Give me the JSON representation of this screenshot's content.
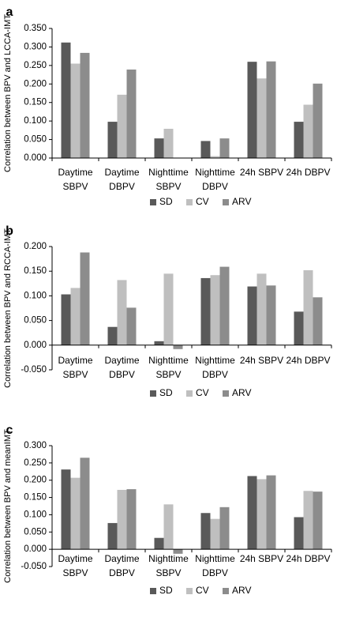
{
  "chart_data": [
    {
      "panel_label": "a",
      "type": "bar",
      "categories": [
        [
          "Daytime",
          "SBPV"
        ],
        [
          "Daytime",
          "DBPV"
        ],
        [
          "Nighttime",
          "SBPV"
        ],
        [
          "Nighttime",
          "DBPV"
        ],
        [
          "24h SBPV"
        ],
        [
          "24h DBPV"
        ]
      ],
      "series": [
        {
          "name": "SD",
          "values": [
            0.312,
            0.098,
            0.053,
            0.046,
            0.26,
            0.098
          ]
        },
        {
          "name": "CV",
          "values": [
            0.255,
            0.171,
            0.079,
            0.005,
            0.215,
            0.144
          ]
        },
        {
          "name": "ARV",
          "values": [
            0.284,
            0.239,
            0.0,
            0.053,
            0.261,
            0.201
          ]
        }
      ],
      "ylabel": "Correlation between BPV and LCCA-IMT",
      "ylim": [
        0,
        0.35
      ],
      "ticks": [
        "0.000",
        "0.050",
        "0.100",
        "0.150",
        "0.200",
        "0.250",
        "0.300",
        "0.350"
      ],
      "legend_position": "bottom",
      "grid": false
    },
    {
      "panel_label": "b",
      "type": "bar",
      "categories": [
        [
          "Daytime",
          "SBPV"
        ],
        [
          "Daytime",
          "DBPV"
        ],
        [
          "Nighttime",
          "SBPV"
        ],
        [
          "Nighttime",
          "DBPV"
        ],
        [
          "24h SBPV"
        ],
        [
          "24h DBPV"
        ]
      ],
      "series": [
        {
          "name": "SD",
          "values": [
            0.103,
            0.037,
            0.008,
            0.136,
            0.119,
            0.068
          ]
        },
        {
          "name": "CV",
          "values": [
            0.116,
            0.132,
            0.145,
            0.142,
            0.145,
            0.152
          ]
        },
        {
          "name": "ARV",
          "values": [
            0.188,
            0.076,
            -0.008,
            0.159,
            0.121,
            0.097
          ]
        }
      ],
      "ylabel": "Correlation between BPV and RCCA-IMT",
      "ylim": [
        -0.05,
        0.2
      ],
      "ticks": [
        "-0.050",
        "0.000",
        "0.050",
        "0.100",
        "0.150",
        "0.200"
      ],
      "legend_position": "bottom",
      "grid": false
    },
    {
      "panel_label": "c",
      "type": "bar",
      "categories": [
        [
          "Daytime",
          "SBPV"
        ],
        [
          "Daytime",
          "DBPV"
        ],
        [
          "Nighttime",
          "SBPV"
        ],
        [
          "Nighttime",
          "DBPV"
        ],
        [
          "24h SBPV"
        ],
        [
          "24h DBPV"
        ]
      ],
      "series": [
        {
          "name": "SD",
          "values": [
            0.231,
            0.076,
            0.033,
            0.105,
            0.212,
            0.093
          ]
        },
        {
          "name": "CV",
          "values": [
            0.207,
            0.172,
            0.13,
            0.088,
            0.203,
            0.169
          ]
        },
        {
          "name": "ARV",
          "values": [
            0.265,
            0.174,
            -0.013,
            0.122,
            0.214,
            0.167
          ]
        }
      ],
      "ylabel": "Correlation between BPV and meanIMT",
      "ylim": [
        -0.05,
        0.3
      ],
      "ticks": [
        "-0.050",
        "0.000",
        "0.050",
        "0.100",
        "0.150",
        "0.200",
        "0.250",
        "0.300"
      ],
      "legend_position": "bottom",
      "grid": false
    }
  ],
  "colors": {
    "SD": "#595959",
    "CV": "#bfbfbf",
    "ARV": "#8c8c8c"
  }
}
